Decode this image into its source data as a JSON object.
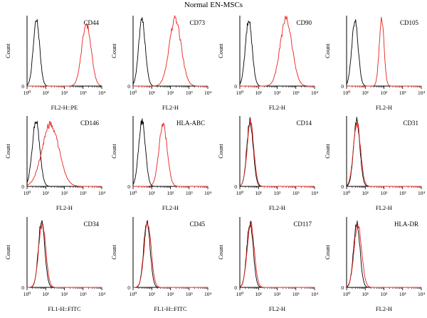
{
  "figure_title": "Normal EN-MSCs",
  "colors": {
    "isotype": "#000000",
    "marker": "#e8231f",
    "axis": "#000000"
  },
  "chart_data": [
    {
      "type": "line",
      "marker": "CD44",
      "xlabel": "FL2-H::PE",
      "ylabel": "Count",
      "xscale": "log",
      "xlim": [
        1,
        10000
      ],
      "xticks": [
        "10⁰",
        "10¹",
        "10²",
        "10³",
        "10⁴"
      ],
      "y0": "0",
      "series": [
        {
          "name": "",
          "color": "isotype",
          "peak_x": 3.2,
          "spread": 0.17,
          "height": 0.93
        },
        {
          "name": "",
          "color": "marker",
          "peak_x": 1500,
          "spread": 0.25,
          "height": 0.88
        }
      ]
    },
    {
      "type": "line",
      "marker": "CD73",
      "xlabel": "FL2-H",
      "ylabel": "Count",
      "xscale": "log",
      "xlim": [
        1,
        10000
      ],
      "xticks": [
        "10⁰",
        "10¹",
        "10²",
        "10³",
        "10⁴"
      ],
      "y0": "0",
      "series": [
        {
          "name": "",
          "color": "isotype",
          "peak_x": 3.0,
          "spread": 0.18,
          "height": 0.93
        },
        {
          "name": "",
          "color": "marker",
          "peak_x": 180,
          "spread": 0.32,
          "height": 0.95
        }
      ]
    },
    {
      "type": "line",
      "marker": "CD90",
      "xlabel": "FL2-H",
      "ylabel": "Count",
      "xscale": "log",
      "xlim": [
        1,
        10000
      ],
      "xticks": [
        "10⁰",
        "10¹",
        "10²",
        "10³",
        "10⁴"
      ],
      "y0": "0",
      "series": [
        {
          "name": "",
          "color": "isotype",
          "peak_x": 3.0,
          "spread": 0.18,
          "height": 0.93
        },
        {
          "name": "",
          "color": "marker",
          "peak_x": 300,
          "spread": 0.32,
          "height": 0.95
        }
      ]
    },
    {
      "type": "line",
      "marker": "CD105",
      "xlabel": "FL2-H",
      "ylabel": "Count",
      "xscale": "log",
      "xlim": [
        1,
        10000
      ],
      "xticks": [
        "10⁰",
        "10¹",
        "10²",
        "10³",
        "10⁴"
      ],
      "y0": "0",
      "series": [
        {
          "name": "",
          "color": "isotype",
          "peak_x": 2.8,
          "spread": 0.17,
          "height": 0.93
        },
        {
          "name": "",
          "color": "marker",
          "peak_x": 75,
          "spread": 0.13,
          "height": 0.95
        }
      ]
    },
    {
      "type": "line",
      "marker": "CD146",
      "xlabel": "FL2-H",
      "ylabel": "Count",
      "xscale": "log",
      "xlim": [
        1,
        10000
      ],
      "xticks": [
        "10⁰",
        "10¹",
        "10²",
        "10³",
        "10⁴"
      ],
      "y0": "0",
      "series": [
        {
          "name": "",
          "color": "isotype",
          "peak_x": 3.0,
          "spread": 0.2,
          "height": 0.93
        },
        {
          "name": "",
          "color": "marker",
          "peak_x": 18,
          "spread": 0.45,
          "height": 0.88
        }
      ]
    },
    {
      "type": "line",
      "marker": "HLA-ABC",
      "xlabel": "FL2-H",
      "ylabel": "Count",
      "xscale": "log",
      "xlim": [
        1,
        10000
      ],
      "xticks": [
        "10⁰",
        "10¹",
        "10²",
        "10³",
        "10⁴"
      ],
      "y0": "0",
      "series": [
        {
          "name": "",
          "color": "isotype",
          "peak_x": 3.0,
          "spread": 0.18,
          "height": 0.93
        },
        {
          "name": "",
          "color": "marker",
          "peak_x": 40,
          "spread": 0.22,
          "height": 0.88
        }
      ]
    },
    {
      "type": "line",
      "marker": "CD14",
      "xlabel": "FL2-H",
      "ylabel": "Count",
      "xscale": "log",
      "xlim": [
        1,
        10000
      ],
      "xticks": [
        "10⁰",
        "10¹",
        "10²",
        "10³",
        "10⁴"
      ],
      "y0": "0",
      "series": [
        {
          "name": "",
          "color": "isotype",
          "peak_x": 3.5,
          "spread": 0.17,
          "height": 0.93
        },
        {
          "name": "",
          "color": "marker",
          "peak_x": 3.7,
          "spread": 0.18,
          "height": 0.9
        }
      ]
    },
    {
      "type": "line",
      "marker": "CD31",
      "xlabel": "FL2-H",
      "ylabel": "Count",
      "xscale": "log",
      "xlim": [
        1,
        10000
      ],
      "xticks": [
        "10⁰",
        "10¹",
        "10²",
        "10³",
        "10⁴"
      ],
      "y0": "0",
      "series": [
        {
          "name": "",
          "color": "isotype",
          "peak_x": 3.5,
          "spread": 0.17,
          "height": 0.93
        },
        {
          "name": "",
          "color": "marker",
          "peak_x": 3.6,
          "spread": 0.19,
          "height": 0.9
        }
      ]
    },
    {
      "type": "line",
      "marker": "CD34",
      "xlabel": "FL1-H::FITC",
      "ylabel": "Count",
      "xscale": "log",
      "xlim": [
        1,
        10000
      ],
      "xticks": [
        "10⁰",
        "10¹",
        "10²",
        "10³",
        "10⁴"
      ],
      "y0": "0",
      "series": [
        {
          "name": "",
          "color": "isotype",
          "peak_x": 6.0,
          "spread": 0.17,
          "height": 0.95
        },
        {
          "name": "",
          "color": "marker",
          "peak_x": 6.5,
          "spread": 0.19,
          "height": 0.9
        }
      ]
    },
    {
      "type": "line",
      "marker": "CD45",
      "xlabel": "FL1-H::FITC",
      "ylabel": "Count",
      "xscale": "log",
      "xlim": [
        1,
        10000
      ],
      "xticks": [
        "10⁰",
        "10¹",
        "10²",
        "10³",
        "10⁴"
      ],
      "y0": "0",
      "series": [
        {
          "name": "",
          "color": "isotype",
          "peak_x": 5.5,
          "spread": 0.17,
          "height": 0.95
        },
        {
          "name": "",
          "color": "marker",
          "peak_x": 6.0,
          "spread": 0.19,
          "height": 0.9
        }
      ]
    },
    {
      "type": "line",
      "marker": "CD117",
      "xlabel": "FL2-H",
      "ylabel": "Count",
      "xscale": "log",
      "xlim": [
        1,
        10000
      ],
      "xticks": [
        "10⁰",
        "10¹",
        "10²",
        "10³",
        "10⁴"
      ],
      "y0": "0",
      "series": [
        {
          "name": "",
          "color": "isotype",
          "peak_x": 3.5,
          "spread": 0.17,
          "height": 0.93
        },
        {
          "name": "",
          "color": "marker",
          "peak_x": 3.8,
          "spread": 0.19,
          "height": 0.9
        }
      ]
    },
    {
      "type": "line",
      "marker": "HLA-DR",
      "xlabel": "FL2-H",
      "ylabel": "Count",
      "xscale": "log",
      "xlim": [
        1,
        10000
      ],
      "xticks": [
        "10⁰",
        "10¹",
        "10²",
        "10³",
        "10⁴"
      ],
      "y0": "0",
      "series": [
        {
          "name": "",
          "color": "isotype",
          "peak_x": 3.5,
          "spread": 0.17,
          "height": 0.93
        },
        {
          "name": "",
          "color": "marker",
          "peak_x": 4.0,
          "spread": 0.2,
          "height": 0.9
        }
      ]
    }
  ]
}
